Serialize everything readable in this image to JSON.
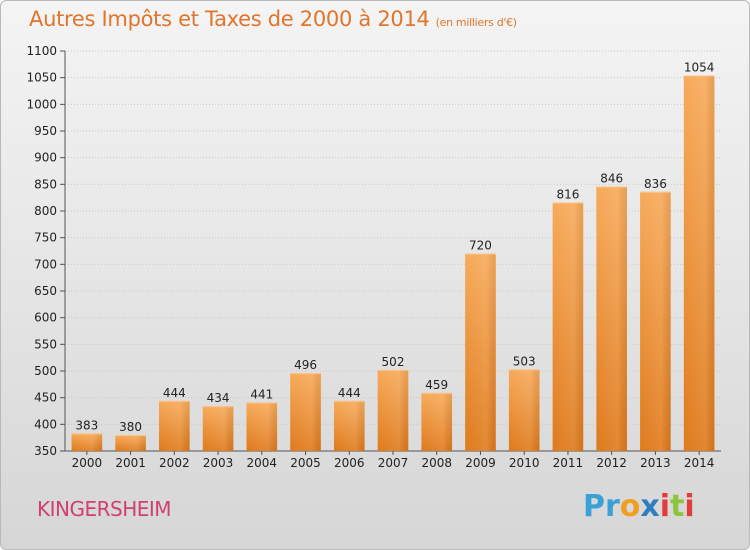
{
  "title": "Autres Impôts et Taxes de 2000 à 2014",
  "subtitle": "(en milliers d'€)",
  "city": "KINGERSHEIM",
  "logo": {
    "letters": [
      "P",
      "r",
      "o",
      "x",
      "i",
      "t",
      "i"
    ],
    "colors": [
      "#3aa0d8",
      "#3aa0d8",
      "#f0a020",
      "#2f7fc0",
      "#e43b3b",
      "#8cc43c",
      "#e43b3b"
    ]
  },
  "colors": {
    "bar_top": "#f7aa5a",
    "bar_bottom": "#df7a1c",
    "title": "#e0752b",
    "city": "#d0406f"
  },
  "chart_data": {
    "type": "bar",
    "title": "Autres Impôts et Taxes de 2000 à 2014",
    "subtitle": "(en milliers d'€)",
    "categories": [
      "2000",
      "2001",
      "2002",
      "2003",
      "2004",
      "2005",
      "2006",
      "2007",
      "2008",
      "2009",
      "2010",
      "2011",
      "2012",
      "2013",
      "2014"
    ],
    "values": [
      383,
      380,
      444,
      434,
      441,
      496,
      444,
      502,
      459,
      720,
      503,
      816,
      846,
      836,
      1054
    ],
    "ylim": [
      350,
      1100
    ],
    "yticks": [
      350,
      400,
      450,
      500,
      550,
      600,
      650,
      700,
      750,
      800,
      850,
      900,
      950,
      1000,
      1050,
      1100
    ],
    "grid": true,
    "xlabel": "",
    "ylabel": ""
  }
}
